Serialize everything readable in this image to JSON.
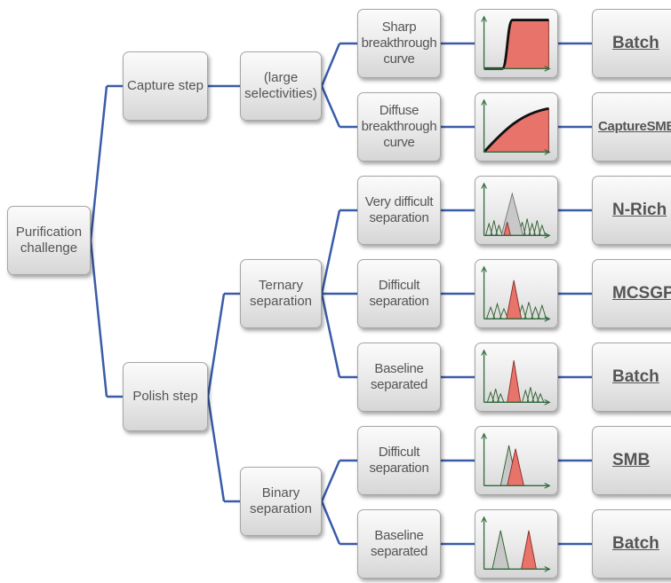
{
  "root": {
    "label": "Purification\nchallenge"
  },
  "steps": {
    "capture": "Capture step",
    "polish": "Polish step"
  },
  "capture_selectivity": "(large\nselectivities)",
  "polish_types": {
    "ternary": "Ternary\nseparation",
    "binary": "Binary\nseparation"
  },
  "cases": [
    {
      "label": "Sharp\nbreakthrough\ncurve",
      "chart": "sharp-breakthrough",
      "method": "Batch"
    },
    {
      "label": "Diffuse\nbreakthrough\ncurve",
      "chart": "diffuse-breakthrough",
      "method": "CaptureSMB"
    },
    {
      "label": "Very difficult\nseparation",
      "chart": "very-difficult-ternary",
      "method": "N-Rich"
    },
    {
      "label": "Difficult\nseparation",
      "chart": "difficult-ternary",
      "method": "MCSGP"
    },
    {
      "label": "Baseline\nseparated",
      "chart": "baseline-ternary",
      "method": "Batch"
    },
    {
      "label": "Difficult\nseparation",
      "chart": "difficult-binary",
      "method": "SMB"
    },
    {
      "label": "Baseline\nseparated",
      "chart": "baseline-binary",
      "method": "Batch"
    }
  ],
  "colors": {
    "connector": "#3a5ca8",
    "axis": "#2e6b3a",
    "impurity_peak": "#2f5f2f",
    "product_fill": "#e7736a",
    "product_stroke": "#8a2f2a",
    "gray_peak": "#c8c8c8"
  }
}
